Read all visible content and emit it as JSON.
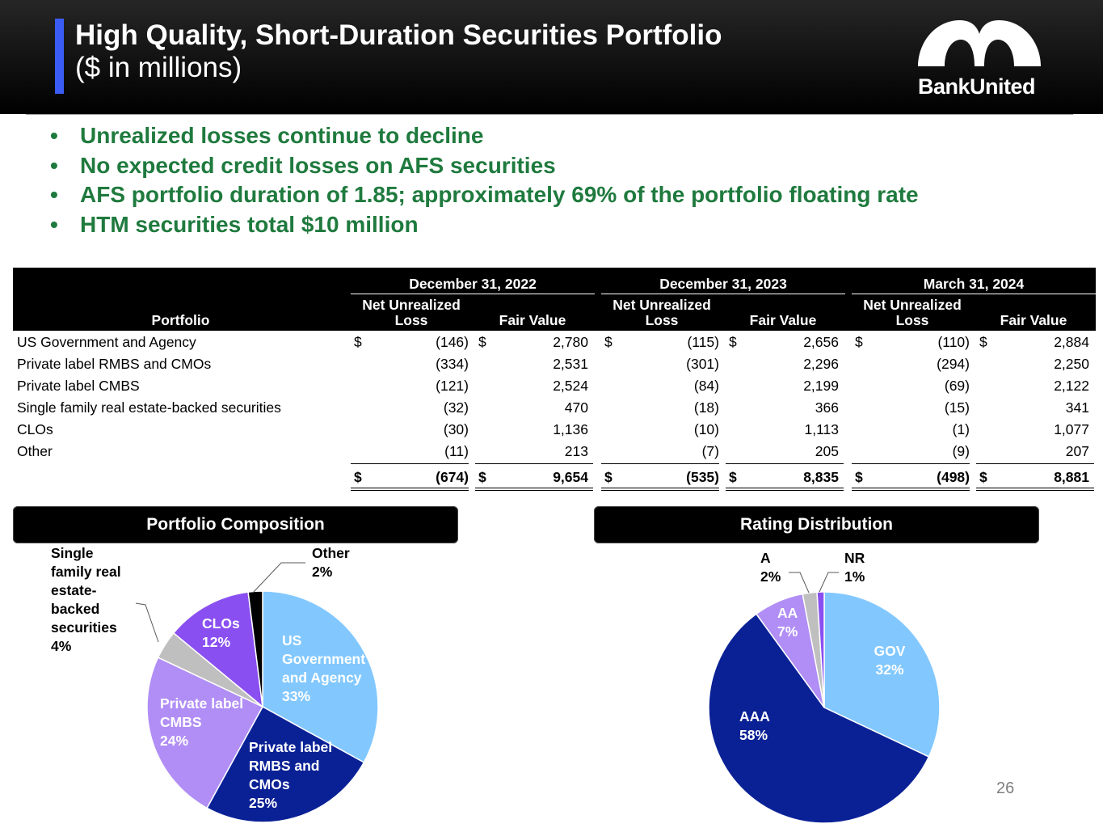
{
  "header": {
    "title": "High Quality, Short-Duration Securities Portfolio",
    "subtitle": "($ in millions)",
    "logo_text": "BankUnited"
  },
  "bullets": [
    "Unrealized losses continue to decline",
    "No expected credit losses on AFS securities",
    "AFS portfolio duration of 1.85; approximately 69% of the portfolio floating rate",
    "HTM securities total $10 million"
  ],
  "table": {
    "portfolio_header": "Portfolio",
    "periods": [
      "December 31, 2022",
      "December 31, 2023",
      "March 31, 2024"
    ],
    "col_loss": "Net Unrealized\nLoss",
    "col_fv": "Fair Value",
    "dollar": "$",
    "rows": [
      {
        "label": "US Government and Agency",
        "values": [
          "(146)",
          "2,780",
          "(115)",
          "2,656",
          "(110)",
          "2,884"
        ]
      },
      {
        "label": "Private label RMBS and CMOs",
        "values": [
          "(334)",
          "2,531",
          "(301)",
          "2,296",
          "(294)",
          "2,250"
        ]
      },
      {
        "label": "Private label CMBS",
        "values": [
          "(121)",
          "2,524",
          "(84)",
          "2,199",
          "(69)",
          "2,122"
        ]
      },
      {
        "label": "Single family real estate-backed securities",
        "values": [
          "(32)",
          "470",
          "(18)",
          "366",
          "(15)",
          "341"
        ]
      },
      {
        "label": "CLOs",
        "values": [
          "(30)",
          "1,136",
          "(10)",
          "1,113",
          "(1)",
          "1,077"
        ]
      },
      {
        "label": "Other",
        "values": [
          "(11)",
          "213",
          "(7)",
          "205",
          "(9)",
          "207"
        ]
      }
    ],
    "totals": [
      "(674)",
      "9,654",
      "(535)",
      "8,835",
      "(498)",
      "8,881"
    ]
  },
  "chart_data": [
    {
      "type": "pie",
      "title": "Portfolio Composition",
      "categories": [
        "US Government and Agency",
        "Private label RMBS and CMOs",
        "Private label CMBS",
        "Single family real estate-backed securities",
        "CLOs",
        "Other"
      ],
      "values": [
        33,
        25,
        24,
        4,
        12,
        2
      ],
      "labels": [
        "US\nGovernment\nand Agency\n33%",
        "Private label\nRMBS and\nCMOs\n25%",
        "Private label\nCMBS\n24%",
        "Single\nfamily real\nestate-\nbacked\nsecurities\n4%",
        "CLOs\n12%",
        "Other\n2%"
      ],
      "colors": [
        "#82c8ff",
        "#0a2196",
        "#b18ef5",
        "#bfbfbf",
        "#8a4ff0",
        "#000000"
      ]
    },
    {
      "type": "pie",
      "title": "Rating Distribution",
      "categories": [
        "GOV",
        "AAA",
        "AA",
        "A",
        "NR"
      ],
      "values": [
        32,
        58,
        7,
        2,
        1
      ],
      "labels": [
        "GOV\n32%",
        "AAA\n58%",
        "AA\n7%",
        "A\n2%",
        "NR\n1%"
      ],
      "colors": [
        "#82c8ff",
        "#0a2196",
        "#b18ef5",
        "#bfbfbf",
        "#8a4ff0"
      ]
    }
  ],
  "footer": {
    "page_number": "26"
  }
}
